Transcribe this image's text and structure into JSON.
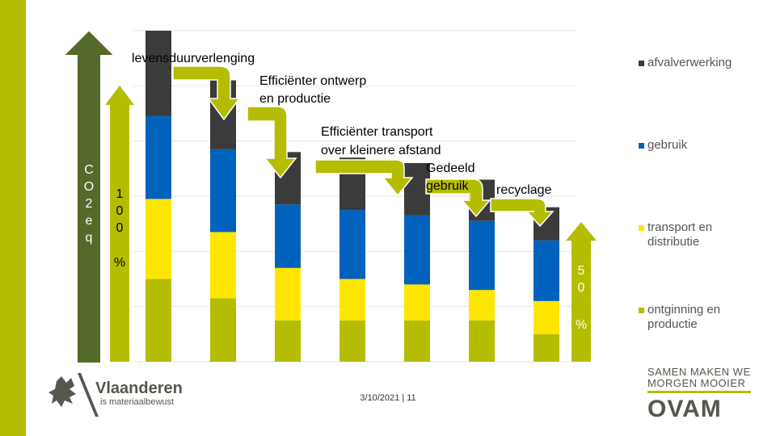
{
  "colors": {
    "afvalverwerking": "#3b3b3b",
    "gebruik": "#0062bd",
    "transport": "#ffe600",
    "ontginning": "#b5bd00",
    "arrow_dark": "#55692a",
    "arrow_light": "#b5bd00",
    "brand_text": "#55574d"
  },
  "chart_data": {
    "type": "bar",
    "stacked": true,
    "categories": [
      "",
      "",
      "",
      "",
      "",
      "",
      ""
    ],
    "series": [
      {
        "name": "ontginning en productie",
        "color_key": "ontginning",
        "values": [
          30,
          23,
          15,
          15,
          15,
          15,
          10
        ]
      },
      {
        "name": "transport en distributie",
        "color_key": "transport",
        "values": [
          29,
          24,
          19,
          15,
          13,
          11,
          12
        ]
      },
      {
        "name": "gebruik",
        "color_key": "gebruik",
        "values": [
          30,
          30,
          23,
          25,
          25,
          25,
          22
        ]
      },
      {
        "name": "afvalverwerking",
        "color_key": "afvalverwerking",
        "values": [
          31,
          25,
          19,
          19,
          19,
          15,
          12
        ]
      }
    ],
    "ylim": [
      0,
      120
    ],
    "title": "",
    "xlabel": "",
    "ylabel": "CO2eq"
  },
  "legend": [
    {
      "label": "afvalverwerking",
      "color_key": "afvalverwerking"
    },
    {
      "label": "gebruik",
      "color_key": "gebruik"
    },
    {
      "label": "transport en distributie",
      "color_key": "transport"
    },
    {
      "label": "ontginning en productie",
      "color_key": "ontginning"
    }
  ],
  "annotations": {
    "levensduur": "levensduurverlenging",
    "ontwerp": "Efficiënter ontwerp en productie",
    "transport": "Efficiënter transport over kleinere afstand",
    "gedeeld": "Gedeeld gebruik",
    "recyclage": "recyclage"
  },
  "axis_arrows": {
    "co2_label": "CO2eq",
    "left_label": "100%",
    "right_label": "50%"
  },
  "footer": {
    "date_page": "3/10/2021 | 11",
    "vlaanderen": "Vlaanderen",
    "vlaanderen_sub": "is materiaalbewust",
    "slogan_line1": "SAMEN MAKEN WE",
    "slogan_line2": "MORGEN MOOIER",
    "ovam": "OVAM"
  }
}
